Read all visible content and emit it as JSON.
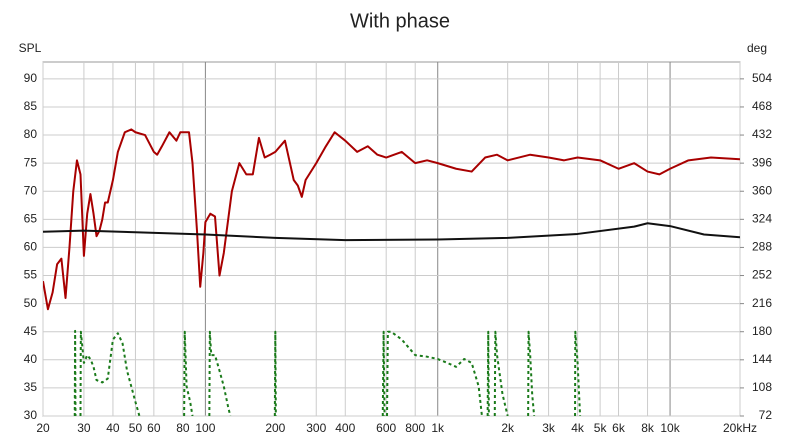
{
  "chart_data": {
    "type": "line",
    "title": "With phase",
    "y_label": "SPL",
    "y2_label": "deg",
    "xscale": "log",
    "grid": true,
    "xlim": [
      20,
      20000
    ],
    "xticks": [
      20,
      30,
      40,
      50,
      60,
      80,
      100,
      200,
      300,
      400,
      600,
      800,
      {
        "value": 1000,
        "label": "1k"
      },
      {
        "value": 2000,
        "label": "2k"
      },
      {
        "value": 3000,
        "label": "3k"
      },
      {
        "value": 4000,
        "label": "4k"
      },
      {
        "value": 5000,
        "label": "5k"
      },
      {
        "value": 6000,
        "label": "6k"
      },
      {
        "value": 8000,
        "label": "8k"
      },
      {
        "value": 10000,
        "label": "10k"
      },
      {
        "value": 20000,
        "label": "20kHz"
      }
    ],
    "ylim": [
      30,
      93
    ],
    "yticks": [
      30,
      35,
      40,
      45,
      50,
      55,
      60,
      65,
      70,
      75,
      80,
      85,
      90
    ],
    "y2lim": [
      72,
      525.6
    ],
    "y2ticks": [
      72,
      108,
      144,
      180,
      216,
      252,
      288,
      324,
      360,
      396,
      432,
      468,
      504
    ],
    "series": [
      {
        "color": "#a80000",
        "width": 2,
        "dash": "none",
        "x": [
          20,
          21,
          22,
          23,
          24,
          25,
          26,
          27,
          28,
          29,
          30,
          31,
          32,
          33,
          34,
          35,
          36,
          37,
          38,
          40,
          42,
          45,
          48,
          50,
          55,
          60,
          62,
          65,
          70,
          75,
          78,
          85,
          88,
          92,
          95,
          98,
          100,
          105,
          110,
          115,
          120,
          130,
          140,
          150,
          160,
          170,
          180,
          190,
          200,
          220,
          240,
          250,
          260,
          270,
          300,
          330,
          360,
          400,
          450,
          500,
          550,
          600,
          700,
          800,
          900,
          1000,
          1200,
          1400,
          1600,
          1800,
          2000,
          2500,
          3000,
          3500,
          4000,
          5000,
          6000,
          7000,
          8000,
          9000,
          10000,
          12000,
          15000,
          20000
        ],
        "values": [
          54,
          49,
          52,
          57,
          58,
          51,
          60,
          70,
          75.5,
          73,
          58.5,
          66,
          69.5,
          66,
          62,
          63,
          65,
          68,
          68,
          72,
          77,
          80.5,
          81,
          80.5,
          80,
          77,
          76.5,
          78,
          80.5,
          79,
          80.5,
          80.5,
          75,
          63,
          53,
          59,
          64.5,
          66,
          65.5,
          55,
          59,
          70,
          75,
          73,
          73,
          79.5,
          76,
          76.5,
          77,
          79,
          72,
          71,
          69,
          72,
          75,
          78,
          80.5,
          79,
          77,
          78,
          76.5,
          76,
          77,
          75,
          75.5,
          75,
          74,
          73.5,
          76,
          76.5,
          75.5,
          76.5,
          76,
          75.5,
          76,
          75.5,
          74,
          75,
          73.5,
          73,
          74,
          75.5,
          76,
          75.7
        ]
      },
      {
        "color": "#111111",
        "width": 2,
        "dash": "none",
        "x": [
          20,
          30,
          50,
          100,
          200,
          400,
          1000,
          2000,
          4000,
          7000,
          8000,
          10000,
          14000,
          20000
        ],
        "values": [
          62.8,
          63,
          62.7,
          62.3,
          61.7,
          61.3,
          61.4,
          61.7,
          62.4,
          63.7,
          64.3,
          63.8,
          62.3,
          61.8
        ]
      },
      {
        "color": "#1a7a1a",
        "width": 2,
        "dash": "3 3",
        "axis": "y2",
        "x": [
          27.4,
          27.5,
          27.6,
          28,
          29,
          29.1,
          30,
          31,
          32,
          33,
          34,
          36,
          38,
          40,
          42,
          44,
          46,
          50,
          52,
          60,
          81,
          81.5,
          83,
          86,
          88,
          95,
          104,
          104.5,
          106,
          110,
          115,
          120,
          125,
          128,
          150,
          199,
          200,
          201,
          300,
          580,
          585,
          590,
          600,
          605,
          610,
          630,
          700,
          800,
          900,
          1000,
          1100,
          1200,
          1300,
          1400,
          1500,
          1550,
          1600,
          1640,
          1650,
          1660,
          1700,
          1760,
          1770,
          1800,
          1900,
          2000,
          2200,
          2450,
          2460,
          2500,
          2550,
          2600,
          3000,
          3900,
          3910,
          4000,
          4100
        ],
        "values": [
          72,
          181,
          72,
          null,
          72,
          180,
          140,
          150,
          145,
          135,
          118,
          115,
          120,
          170,
          178,
          165,
          130,
          90,
          72,
          null,
          72,
          180,
          110,
          90,
          72,
          null,
          72,
          180,
          150,
          150,
          130,
          110,
          85,
          72,
          null,
          72,
          180,
          72,
          null,
          72,
          180,
          72,
          null,
          72,
          180,
          180,
          170,
          150,
          148,
          145,
          140,
          135,
          145,
          140,
          110,
          72,
          null,
          72,
          180,
          72,
          null,
          72,
          180,
          150,
          100,
          72,
          null,
          72,
          180,
          150,
          100,
          72,
          null,
          72,
          180,
          140,
          72
        ]
      }
    ]
  }
}
